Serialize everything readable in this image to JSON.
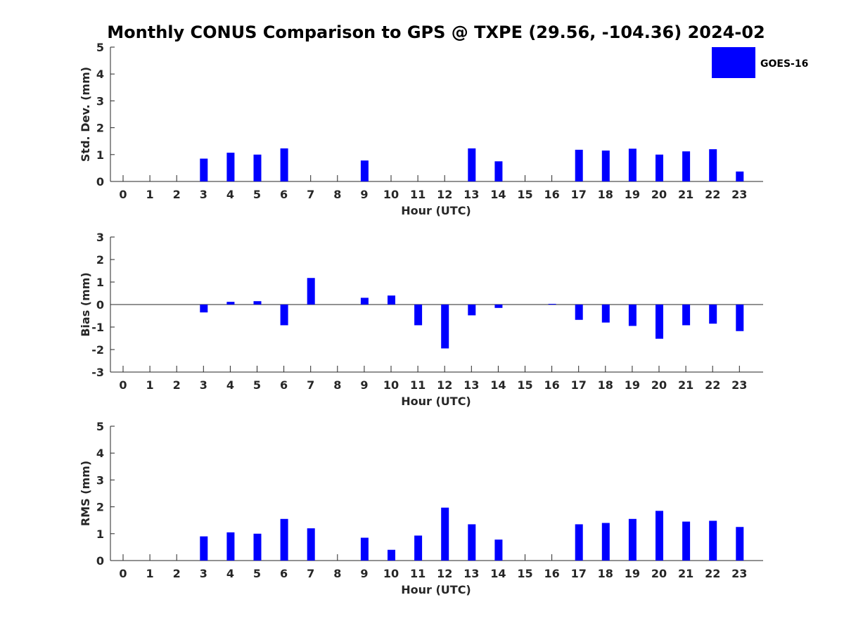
{
  "chart_data": {
    "title": "Monthly CONUS Comparison to GPS @ TXPE (29.56, -104.36) 2024-02",
    "legend": {
      "label": "GOES-16",
      "placement": "top-right",
      "color": "#0000ff"
    },
    "bar_color": "#0000ff",
    "panels": [
      {
        "type": "bar",
        "ylabel": "Std. Dev. (mm)",
        "xlabel": "Hour (UTC)",
        "ylim": [
          0,
          5
        ],
        "yticks": [
          "0",
          "1",
          "2",
          "3",
          "4",
          "5"
        ],
        "categories": [
          "0",
          "1",
          "2",
          "3",
          "4",
          "5",
          "6",
          "7",
          "8",
          "9",
          "10",
          "11",
          "12",
          "13",
          "14",
          "15",
          "16",
          "17",
          "18",
          "19",
          "20",
          "21",
          "22",
          "23"
        ],
        "series": [
          {
            "name": "GOES-16",
            "values": [
              null,
              null,
              null,
              0.85,
              1.07,
              1.0,
              1.23,
              null,
              null,
              0.78,
              null,
              null,
              null,
              1.23,
              0.75,
              null,
              null,
              1.18,
              1.15,
              1.22,
              1.0,
              1.12,
              1.2,
              0.37
            ]
          }
        ]
      },
      {
        "type": "bar",
        "ylabel": "Bias (mm)",
        "xlabel": "Hour (UTC)",
        "ylim": [
          -3,
          3
        ],
        "yticks": [
          "-3",
          "-2",
          "-1",
          "0",
          "1",
          "2",
          "3"
        ],
        "categories": [
          "0",
          "1",
          "2",
          "3",
          "4",
          "5",
          "6",
          "7",
          "8",
          "9",
          "10",
          "11",
          "12",
          "13",
          "14",
          "15",
          "16",
          "17",
          "18",
          "19",
          "20",
          "21",
          "22",
          "23"
        ],
        "series": [
          {
            "name": "GOES-16",
            "values": [
              null,
              null,
              null,
              -0.35,
              0.12,
              0.15,
              -0.92,
              1.18,
              null,
              0.3,
              0.4,
              -0.92,
              -1.95,
              -0.48,
              -0.15,
              null,
              0.03,
              -0.68,
              -0.8,
              -0.95,
              -1.52,
              -0.92,
              -0.85,
              -1.18
            ]
          }
        ]
      },
      {
        "type": "bar",
        "ylabel": "RMS (mm)",
        "xlabel": "Hour (UTC)",
        "ylim": [
          0,
          5
        ],
        "yticks": [
          "0",
          "1",
          "2",
          "3",
          "4",
          "5"
        ],
        "categories": [
          "0",
          "1",
          "2",
          "3",
          "4",
          "5",
          "6",
          "7",
          "8",
          "9",
          "10",
          "11",
          "12",
          "13",
          "14",
          "15",
          "16",
          "17",
          "18",
          "19",
          "20",
          "21",
          "22",
          "23"
        ],
        "series": [
          {
            "name": "GOES-16",
            "values": [
              null,
              null,
              null,
              0.9,
              1.05,
              1.0,
              1.55,
              1.2,
              null,
              0.85,
              0.4,
              0.93,
              1.97,
              1.35,
              0.78,
              null,
              null,
              1.35,
              1.4,
              1.55,
              1.85,
              1.45,
              1.48,
              1.25
            ]
          }
        ]
      }
    ]
  }
}
